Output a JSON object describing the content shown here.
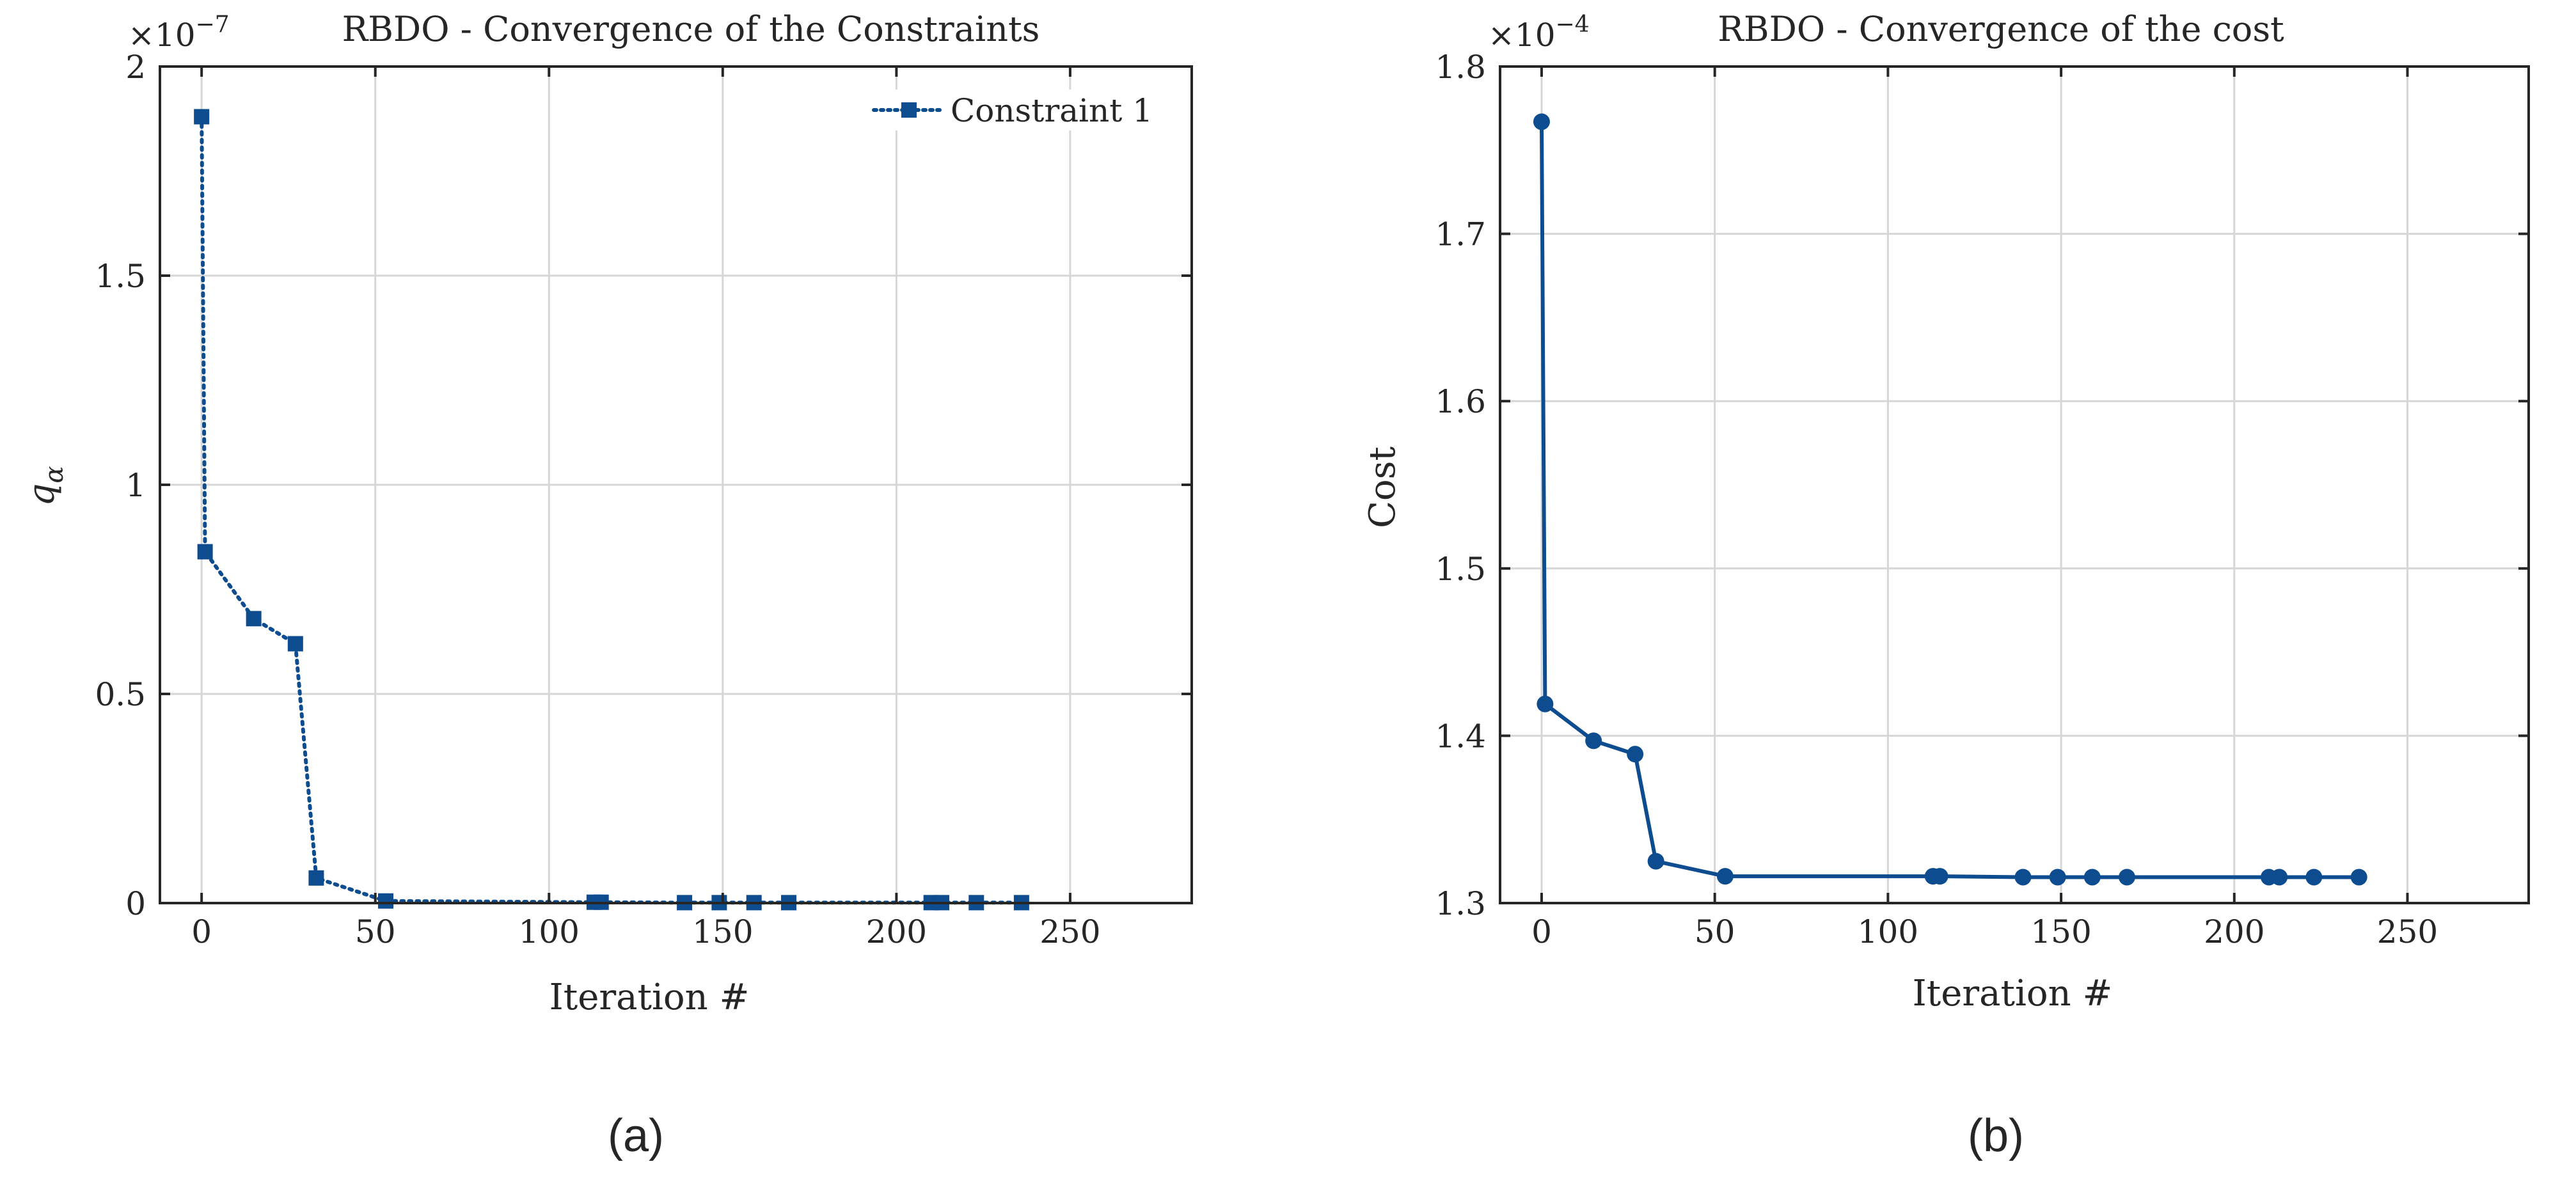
{
  "colors": {
    "series": "#0d4d8f",
    "axis": "#262626",
    "grid": "#d6d6d6",
    "background": "#ffffff"
  },
  "chart_data": [
    {
      "type": "line",
      "panel_label": "(a)",
      "title": "RBDO - Convergence of the Constraints",
      "xlabel": "Iteration #",
      "ylabel": "q",
      "ylabel_subscript": "α",
      "xlim": [
        -12,
        285
      ],
      "ylim": [
        0,
        2
      ],
      "y_multiplier": "×10",
      "y_exponent": "−7",
      "xticks": [
        0,
        50,
        100,
        150,
        200,
        250
      ],
      "yticks": [
        0,
        0.5,
        1,
        1.5,
        2
      ],
      "ytick_labels": [
        "0",
        "0.5",
        "1",
        "1.5",
        "2"
      ],
      "grid": true,
      "legend": "top-right",
      "series": [
        {
          "name": "Constraint 1",
          "line_style": "dotted",
          "marker": "square",
          "x": [
            0,
            1,
            15,
            27,
            33,
            53,
            113,
            115,
            139,
            149,
            159,
            169,
            210,
            213,
            223,
            236
          ],
          "y": [
            1.88,
            0.84,
            0.68,
            0.62,
            0.06,
            0.005,
            0.002,
            0.002,
            0.001,
            0.001,
            0.001,
            0.001,
            0.001,
            0.001,
            0.001,
            0.001
          ]
        }
      ]
    },
    {
      "type": "line",
      "panel_label": "(b)",
      "title": "RBDO - Convergence of the cost",
      "xlabel": "Iteration #",
      "ylabel": "Cost",
      "xlim": [
        -12,
        285
      ],
      "ylim": [
        1.3,
        1.8
      ],
      "y_multiplier": "×10",
      "y_exponent": "−4",
      "xticks": [
        0,
        50,
        100,
        150,
        200,
        250
      ],
      "yticks": [
        1.3,
        1.4,
        1.5,
        1.6,
        1.7,
        1.8
      ],
      "ytick_labels": [
        "1.3",
        "1.4",
        "1.5",
        "1.6",
        "1.7",
        "1.8"
      ],
      "grid": true,
      "legend": "none",
      "series": [
        {
          "line_style": "solid",
          "marker": "circle",
          "x": [
            0,
            1,
            15,
            27,
            33,
            53,
            113,
            115,
            139,
            149,
            159,
            169,
            210,
            213,
            223,
            236
          ],
          "y": [
            1.767,
            1.419,
            1.397,
            1.389,
            1.325,
            1.316,
            1.316,
            1.316,
            1.3155,
            1.3155,
            1.3155,
            1.3155,
            1.3155,
            1.3155,
            1.3155,
            1.3155
          ]
        }
      ]
    }
  ]
}
